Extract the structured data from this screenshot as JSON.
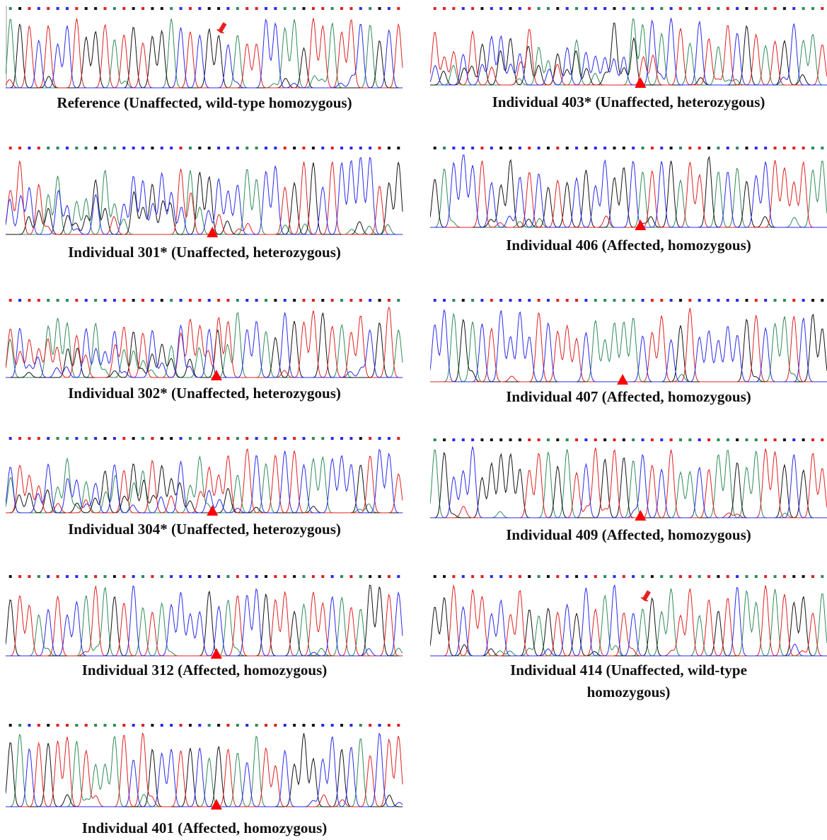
{
  "panels": [
    {
      "caption": "Reference (Unaffected, wild-type homozygous)",
      "marker": "arrow"
    },
    {
      "caption": "Individual 301* (Unaffected, heterozygous)",
      "marker": "triangle"
    },
    {
      "caption": "Individual 302* (Unaffected, heterozygous)",
      "marker": "triangle"
    },
    {
      "caption": "Individual 304* (Unaffected, heterozygous)",
      "marker": "triangle"
    },
    {
      "caption": "Individual 312 (Affected, homozygous)",
      "marker": "triangle"
    },
    {
      "caption": "Individual 401 (Affected, homozygous)",
      "marker": "triangle"
    },
    {
      "caption": "Individual 403* (Unaffected, heterozygous)",
      "marker": "triangle"
    },
    {
      "caption": "Individual 406 (Affected, homozygous)",
      "marker": "triangle"
    },
    {
      "caption": "Individual 407 (Affected, homozygous)",
      "marker": "triangle"
    },
    {
      "caption": "Individual 409 (Affected, homozygous)",
      "marker": "triangle"
    },
    {
      "caption": "Individual 414 (Unaffected, wild-type homozygous)",
      "marker": "arrow"
    }
  ]
}
